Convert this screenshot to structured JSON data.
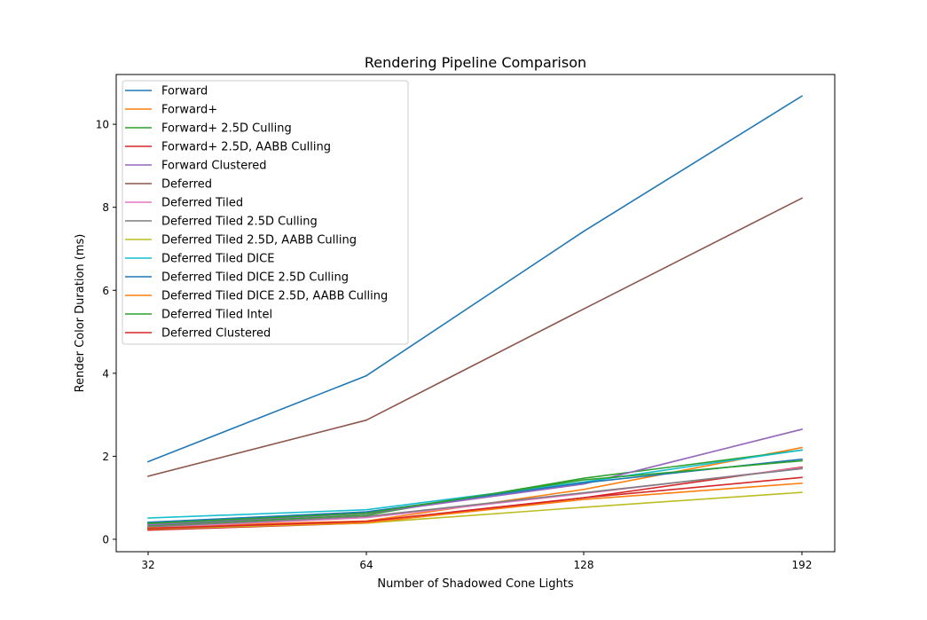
{
  "chart_data": {
    "type": "line",
    "title": "Rendering Pipeline Comparison",
    "xlabel": "Number of Shadowed Cone Lights",
    "ylabel": "Render Color Duration (ms)",
    "x": [
      32,
      64,
      128,
      192
    ],
    "x_ticks": [
      "32",
      "64",
      "128",
      "192"
    ],
    "y_ticks": [
      "0",
      "2",
      "4",
      "6",
      "8",
      "10"
    ],
    "ylim": [
      -0.3,
      11.2
    ],
    "grid": false,
    "legend_position": "top-left",
    "series": [
      {
        "name": "Forward",
        "color": "#1f77b4",
        "values": [
          1.87,
          3.94,
          7.42,
          10.68
        ]
      },
      {
        "name": "Forward+",
        "color": "#ff7f0e",
        "values": [
          0.3,
          0.44,
          1.2,
          2.21
        ]
      },
      {
        "name": "Forward+ 2.5D Culling",
        "color": "#2ca02c",
        "values": [
          0.33,
          0.58,
          1.47,
          2.15
        ]
      },
      {
        "name": "Forward+ 2.5D, AABB Culling",
        "color": "#d62728",
        "values": [
          0.22,
          0.39,
          1.0,
          1.74
        ]
      },
      {
        "name": "Forward Clustered",
        "color": "#9467bd",
        "values": [
          0.35,
          0.62,
          1.33,
          2.65
        ]
      },
      {
        "name": "Deferred",
        "color": "#8c564b",
        "values": [
          1.52,
          2.87,
          5.55,
          8.22
        ]
      },
      {
        "name": "Deferred Tiled",
        "color": "#e377c2",
        "values": [
          0.28,
          0.52,
          1.1,
          1.72
        ]
      },
      {
        "name": "Deferred Tiled 2.5D Culling",
        "color": "#7f7f7f",
        "values": [
          0.3,
          0.55,
          1.12,
          1.7
        ]
      },
      {
        "name": "Deferred Tiled 2.5D, AABB Culling",
        "color": "#bcbd22",
        "values": [
          0.25,
          0.39,
          0.77,
          1.13
        ]
      },
      {
        "name": "Deferred Tiled DICE",
        "color": "#17becf",
        "values": [
          0.51,
          0.71,
          1.38,
          2.15
        ]
      },
      {
        "name": "Deferred Tiled DICE 2.5D Culling",
        "color": "#1f77b4",
        "values": [
          0.41,
          0.66,
          1.36,
          1.93
        ]
      },
      {
        "name": "Deferred Tiled DICE 2.5D, AABB Culling",
        "color": "#ff7f0e",
        "values": [
          0.27,
          0.4,
          0.96,
          1.35
        ]
      },
      {
        "name": "Deferred Tiled Intel",
        "color": "#2ca02c",
        "values": [
          0.38,
          0.63,
          1.43,
          1.89
        ]
      },
      {
        "name": "Deferred Clustered",
        "color": "#d62728",
        "values": [
          0.26,
          0.43,
          1.0,
          1.49
        ]
      }
    ]
  }
}
